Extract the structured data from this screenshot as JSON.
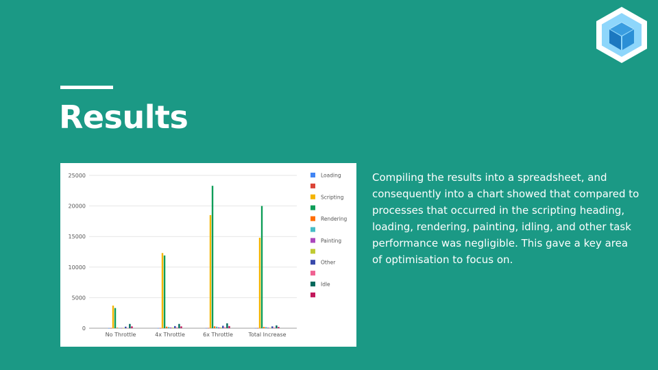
{
  "slide": {
    "title": "Results",
    "body": "Compiling the results into a spreadsheet, and consequently into a chart showed that compared to processes that occurred in the scripting heading, loading, rendering, painting, idling, and other task performance was negligible. This gave a key area of optimisation to focus on."
  },
  "colors": {
    "background": "#1b9985",
    "accent": "#ffffff"
  },
  "logo_icon": "webpack-cube-icon",
  "chart_data": {
    "type": "bar",
    "title": "",
    "xlabel": "",
    "ylabel": "",
    "ylim": [
      0,
      25000
    ],
    "yticks": [
      "0",
      "5000",
      "10000",
      "15000",
      "20000",
      "25000"
    ],
    "grid": true,
    "legend_position": "right",
    "categories": [
      "No Throttle",
      "4x Throttle",
      "6x Throttle",
      "Total Increase"
    ],
    "series": [
      {
        "name": "Loading",
        "color": "#4285f4",
        "values": [
          10,
          20,
          25,
          15
        ]
      },
      {
        "name": "",
        "color": "#db4437",
        "values": [
          15,
          30,
          40,
          25
        ]
      },
      {
        "name": "Scripting",
        "color": "#f4b400",
        "values": [
          3700,
          12300,
          18500,
          14800
        ]
      },
      {
        "name": "",
        "color": "#0f9d58",
        "values": [
          3300,
          11900,
          23300,
          20000
        ]
      },
      {
        "name": "Rendering",
        "color": "#ff6d00",
        "values": [
          80,
          250,
          300,
          200
        ]
      },
      {
        "name": "",
        "color": "#46bdc6",
        "values": [
          60,
          200,
          250,
          180
        ]
      },
      {
        "name": "Painting",
        "color": "#ab47bc",
        "values": [
          40,
          120,
          150,
          100
        ]
      },
      {
        "name": "",
        "color": "#c0ca33",
        "values": [
          30,
          100,
          120,
          80
        ]
      },
      {
        "name": "Other",
        "color": "#3949ab",
        "values": [
          250,
          350,
          400,
          300
        ]
      },
      {
        "name": "",
        "color": "#f06292",
        "values": [
          50,
          120,
          150,
          100
        ]
      },
      {
        "name": "Idle",
        "color": "#00695c",
        "values": [
          700,
          700,
          800,
          450
        ]
      },
      {
        "name": "",
        "color": "#c2185b",
        "values": [
          300,
          300,
          350,
          200
        ]
      }
    ]
  }
}
